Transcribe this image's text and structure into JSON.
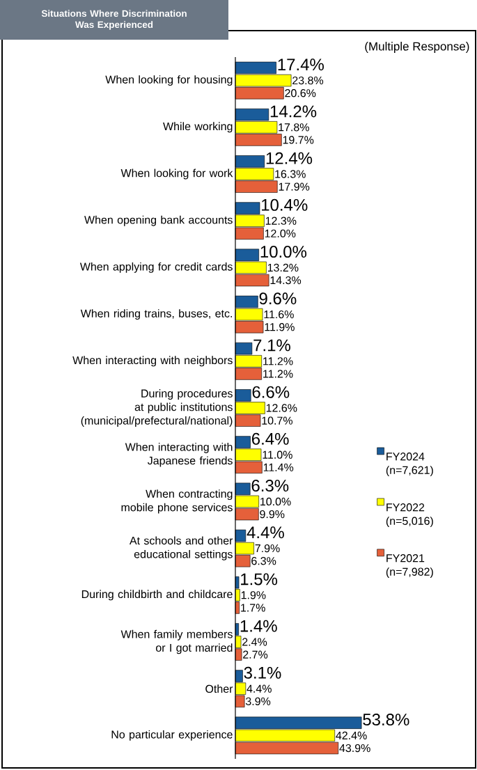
{
  "chart_data": {
    "type": "bar",
    "orientation": "horizontal",
    "legend": "right",
    "title": "Situations Where Discrimination Was Experienced",
    "annotations": [
      "(Multiple Response)"
    ],
    "categories": [
      "When looking for housing",
      "While working",
      "When looking for work",
      "When opening bank accounts",
      "When applying for credit cards",
      "When riding trains, buses, etc.",
      "When interacting with neighbors",
      "During procedures at public institutions (municipal/prefectural/national)",
      "When interacting with Japanese friends",
      "When contracting mobile phone services",
      "At schools and other educational settings",
      "During childbirth and childcare",
      "When family members or I got married",
      "Other",
      "No particular experience"
    ],
    "series": [
      {
        "name": "FY2024 (n=7,621)",
        "color": "#1a5c9a",
        "values": [
          17.4,
          14.2,
          12.4,
          10.4,
          10.0,
          9.6,
          7.1,
          6.6,
          6.4,
          6.3,
          4.4,
          1.5,
          1.4,
          3.1,
          53.8
        ],
        "value_labels": [
          "17.4%",
          "14.2%",
          "12.4%",
          "10.4%",
          "10.0%",
          "9.6%",
          "7.1%",
          "6.6%",
          "6.4%",
          "6.3%",
          "4.4%",
          "1.5%",
          "1.4%",
          "3.1%",
          "53.8%"
        ]
      },
      {
        "name": "FY2022 (n=5,016)",
        "color": "#ffff00",
        "values": [
          23.8,
          17.8,
          16.3,
          12.3,
          13.2,
          11.6,
          11.2,
          12.6,
          11.0,
          10.0,
          7.9,
          1.9,
          2.4,
          4.4,
          42.4
        ],
        "value_labels": [
          "23.8%",
          "17.8%",
          "16.3%",
          "12.3%",
          "13.2%",
          "11.6%",
          "11.2%",
          "12.6%",
          "11.0%",
          "10.0%",
          "7.9%",
          "1.9%",
          "2.4%",
          "4.4%",
          "42.4%"
        ]
      },
      {
        "name": "FY2021 (n=7,982)",
        "color": "#e5603a",
        "values": [
          20.6,
          19.7,
          17.9,
          12.0,
          14.3,
          11.9,
          11.2,
          10.7,
          11.4,
          9.9,
          6.3,
          1.7,
          2.7,
          3.9,
          43.9
        ],
        "value_labels": [
          "20.6%",
          "19.7%",
          "17.9%",
          "12.0%",
          "14.3%",
          "11.9%",
          "11.2%",
          "10.7%",
          "11.4%",
          "9.9%",
          "6.3%",
          "1.7%",
          "2.7%",
          "3.9%",
          "43.9%"
        ]
      }
    ]
  }
}
